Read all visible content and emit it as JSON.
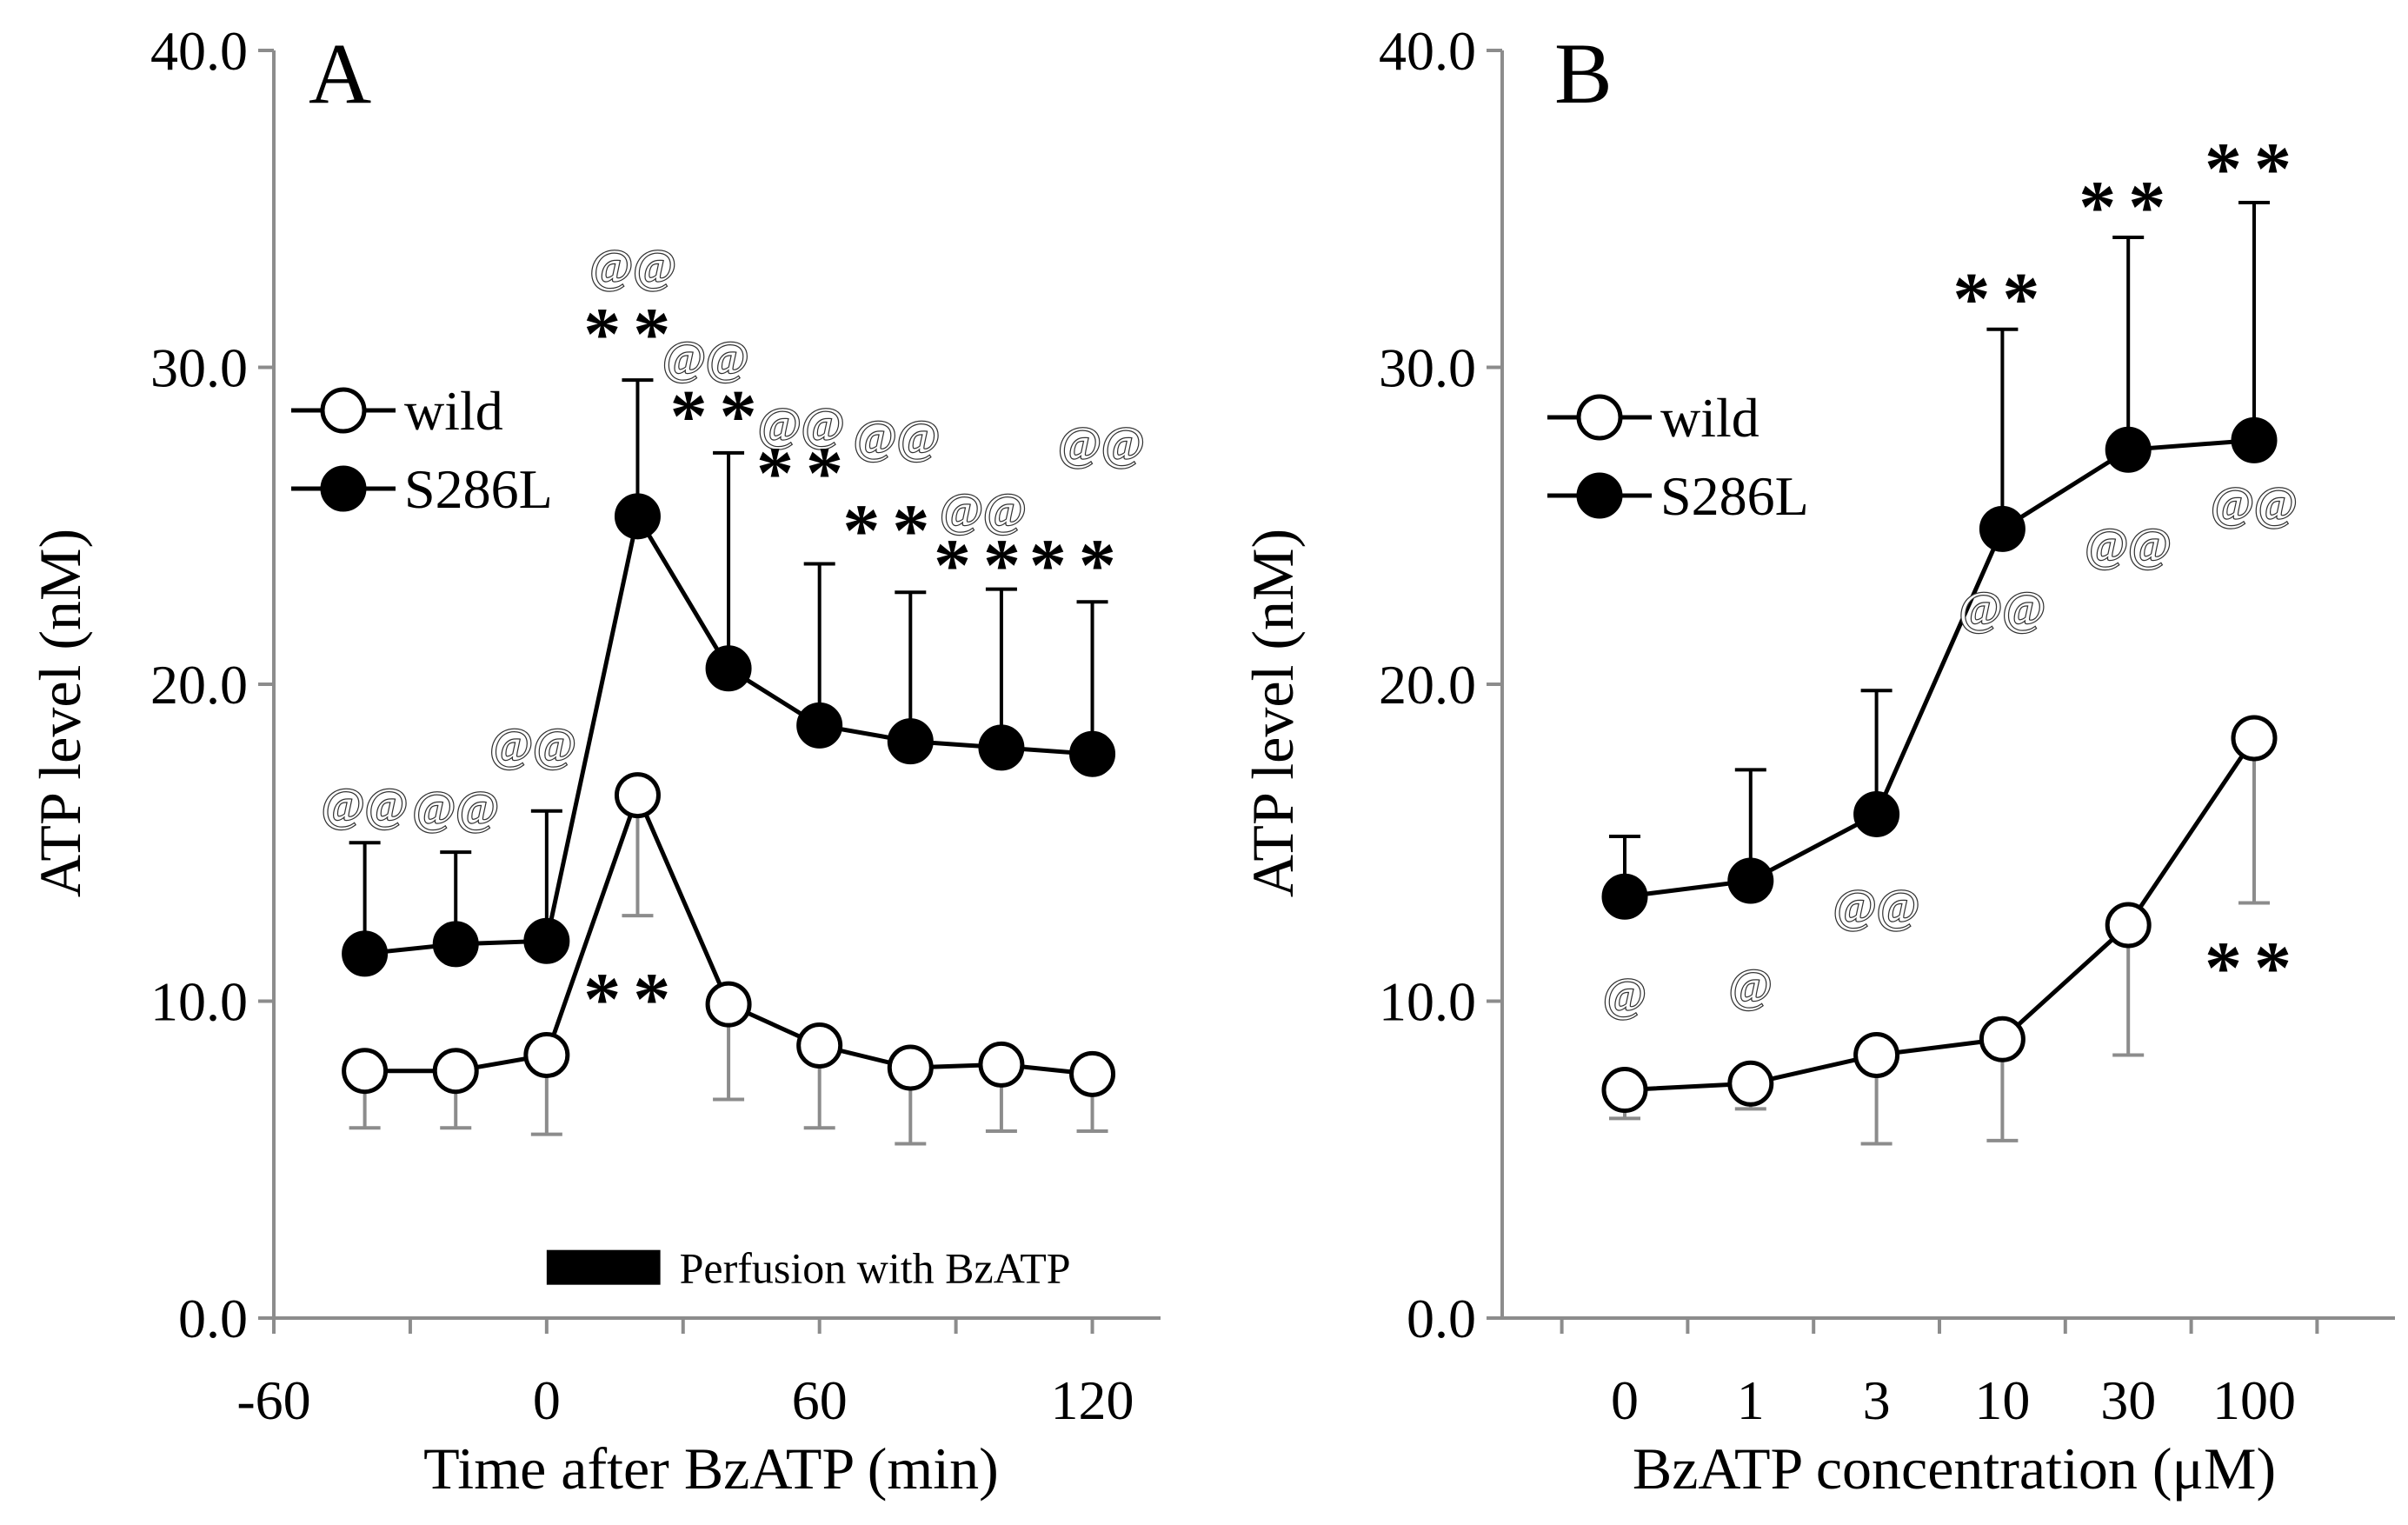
{
  "chart_data": [
    {
      "panel": "A",
      "type": "line",
      "xlabel": "Time after BzATP (min)",
      "ylabel": "ATP  level (nM)",
      "xlim": [
        -60,
        135
      ],
      "ylim": [
        0,
        40
      ],
      "xticks": [
        -60,
        0,
        60,
        120
      ],
      "xtick_labels": [
        "-60",
        "0",
        "60",
        "120"
      ],
      "yticks": [
        0,
        10,
        20,
        30,
        40
      ],
      "ytick_labels": [
        "0.0",
        "10.0",
        "20.0",
        "30.0",
        "40.0"
      ],
      "grid": false,
      "legend_position": "upper-left",
      "series": [
        {
          "name": "wild",
          "marker": "open-circle",
          "x": [
            -40,
            -20,
            0,
            20,
            40,
            60,
            80,
            100,
            120
          ],
          "y": [
            7.8,
            7.8,
            8.3,
            16.5,
            9.9,
            8.6,
            7.9,
            8.0,
            7.7
          ],
          "error_lower": [
            6.0,
            6.0,
            5.8,
            12.7,
            6.9,
            6.0,
            5.5,
            5.9,
            5.9
          ],
          "error_upper": []
        },
        {
          "name": "S286L",
          "marker": "filled-circle",
          "x": [
            -40,
            -20,
            0,
            20,
            40,
            60,
            80,
            100,
            120
          ],
          "y": [
            11.5,
            11.8,
            11.9,
            25.3,
            20.5,
            18.7,
            18.2,
            18.0,
            17.8
          ],
          "error_lower": [],
          "error_upper": [
            15.0,
            14.7,
            16.0,
            29.6,
            27.3,
            23.8,
            22.9,
            23.0,
            22.6
          ]
        }
      ],
      "perfusion_bar": {
        "label": "Perfusion with BzATP",
        "x_start": 0,
        "x_end": 25,
        "y": 1.6
      },
      "annotations": [
        {
          "text": "@@",
          "x": -40,
          "y": 16.2,
          "style": "at"
        },
        {
          "text": "@@",
          "x": -20,
          "y": 16.1,
          "style": "at"
        },
        {
          "text": "@@",
          "x": -3,
          "y": 18.1,
          "style": "at"
        },
        {
          "text": "@@",
          "x": 19,
          "y": 33.2,
          "style": "at"
        },
        {
          "text": "**",
          "x": 19,
          "y": 31.2,
          "style": "star"
        },
        {
          "text": "@@",
          "x": 35,
          "y": 30.3,
          "style": "at"
        },
        {
          "text": "**",
          "x": 38,
          "y": 28.6,
          "style": "star"
        },
        {
          "text": "@@",
          "x": 56,
          "y": 28.2,
          "style": "at"
        },
        {
          "text": "**",
          "x": 57,
          "y": 26.8,
          "style": "star"
        },
        {
          "text": "@@",
          "x": 77,
          "y": 27.8,
          "style": "at"
        },
        {
          "text": "@@",
          "x": 122,
          "y": 27.6,
          "style": "at"
        },
        {
          "text": "**",
          "x": 76,
          "y": 25.0,
          "style": "star"
        },
        {
          "text": "@@",
          "x": 96,
          "y": 25.5,
          "style": "at"
        },
        {
          "text": "**",
          "x": 96,
          "y": 23.9,
          "style": "star"
        },
        {
          "text": "**",
          "x": 117,
          "y": 23.9,
          "style": "star"
        },
        {
          "text": "**",
          "x": 19,
          "y": 10.2,
          "style": "star"
        }
      ]
    },
    {
      "panel": "B",
      "type": "line",
      "xlabel": "BzATP concentration (μM)",
      "ylabel": "ATP  level (nM)",
      "categories": [
        "0",
        "1",
        "3",
        "10",
        "30",
        "100"
      ],
      "ylim": [
        0,
        40
      ],
      "yticks": [
        0,
        10,
        20,
        30,
        40
      ],
      "ytick_labels": [
        "0.0",
        "10.0",
        "20.0",
        "30.0",
        "40.0"
      ],
      "grid": false,
      "legend_position": "upper-left",
      "series": [
        {
          "name": "wild",
          "marker": "open-circle",
          "values": [
            7.2,
            7.4,
            8.3,
            8.8,
            12.4,
            18.3
          ],
          "error_lower": [
            6.3,
            6.6,
            5.5,
            5.6,
            8.3,
            13.1
          ],
          "error_upper": []
        },
        {
          "name": "S286L",
          "marker": "filled-circle",
          "values": [
            13.3,
            13.8,
            15.9,
            24.9,
            27.4,
            27.7
          ],
          "error_lower": [],
          "error_upper": [
            15.2,
            17.3,
            19.8,
            31.2,
            34.1,
            35.2
          ]
        }
      ],
      "annotations": [
        {
          "text": "@",
          "category_index": 0,
          "y": 10.2,
          "style": "at"
        },
        {
          "text": "@",
          "category_index": 1,
          "y": 10.5,
          "style": "at"
        },
        {
          "text": "@@",
          "category_index": 2,
          "y": 13.0,
          "style": "at"
        },
        {
          "text": "@@",
          "category_index": 3,
          "y": 22.4,
          "style": "at"
        },
        {
          "text": "@@",
          "category_index": 4,
          "y": 24.4,
          "style": "at"
        },
        {
          "text": "@@",
          "category_index": 5,
          "y": 25.7,
          "style": "at"
        },
        {
          "text": "**",
          "category_index": 3,
          "y": 32.3,
          "style": "star"
        },
        {
          "text": "**",
          "category_index": 4,
          "y": 35.2,
          "style": "star"
        },
        {
          "text": "**",
          "category_index": 5,
          "y": 36.4,
          "style": "star"
        },
        {
          "text": "**",
          "category_index": 5,
          "y": 11.2,
          "style": "star"
        }
      ]
    }
  ]
}
